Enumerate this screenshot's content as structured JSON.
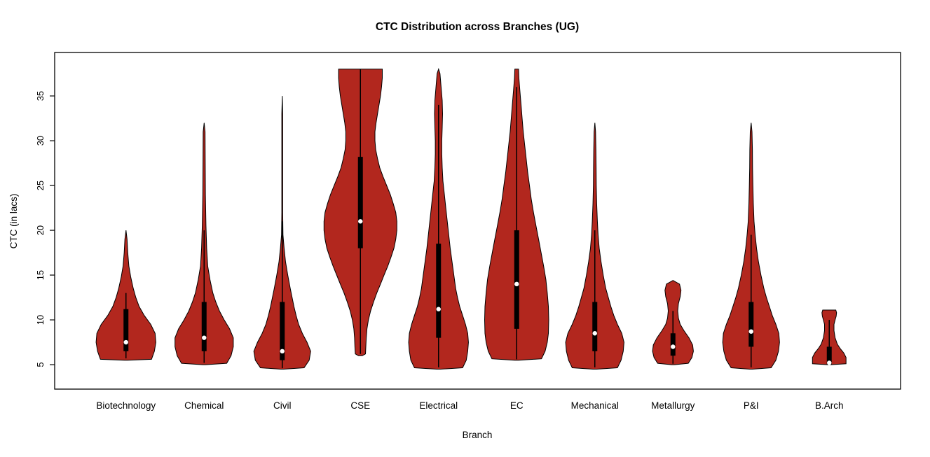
{
  "page": {
    "title": "CTC Distribution across Branches (UG)"
  },
  "chart_data": {
    "type": "violin",
    "title": "CTC Distribution across Branches (UG)",
    "xlabel": "Branch",
    "ylabel": "CTC (in lacs)",
    "ylim": [
      2.27,
      39.85
    ],
    "yticks": [
      5,
      10,
      15,
      20,
      25,
      30,
      35
    ],
    "grid": false,
    "fill_color": "#b2271e",
    "outline_color": "#000000",
    "box_color": "#000000",
    "median_dot_color": "#ffffff",
    "categories": [
      "Biotechnology",
      "Chemical",
      "Civil",
      "CSE",
      "Electrical",
      "EC",
      "Mechanical",
      "Metallurgy",
      "P&I",
      "B.Arch"
    ],
    "violins": [
      {
        "branch": "Biotechnology",
        "min": 5.5,
        "max": 20,
        "q1": 6.5,
        "median": 7.5,
        "q3": 11.2,
        "whisker_low": 5.7,
        "whisker_high": 13,
        "profile": [
          [
            5.5,
            0.04
          ],
          [
            5.6,
            0.7
          ],
          [
            6.5,
            0.78
          ],
          [
            7.5,
            0.82
          ],
          [
            8.5,
            0.8
          ],
          [
            9.5,
            0.68
          ],
          [
            10.5,
            0.5
          ],
          [
            11.5,
            0.36
          ],
          [
            12.5,
            0.27
          ],
          [
            13.5,
            0.2
          ],
          [
            14.8,
            0.13
          ],
          [
            16,
            0.08
          ],
          [
            17.5,
            0.05
          ],
          [
            19,
            0.03
          ],
          [
            20,
            0.0
          ]
        ]
      },
      {
        "branch": "Chemical",
        "min": 5.0,
        "max": 32,
        "q1": 6.5,
        "median": 8.0,
        "q3": 12.0,
        "whisker_low": 5.2,
        "whisker_high": 20,
        "profile": [
          [
            5,
            0.04
          ],
          [
            5.15,
            0.62
          ],
          [
            6,
            0.74
          ],
          [
            7,
            0.8
          ],
          [
            8,
            0.8
          ],
          [
            9,
            0.7
          ],
          [
            10,
            0.55
          ],
          [
            11,
            0.42
          ],
          [
            12,
            0.32
          ],
          [
            13,
            0.24
          ],
          [
            14.5,
            0.16
          ],
          [
            16,
            0.1
          ],
          [
            18,
            0.07
          ],
          [
            20.5,
            0.05
          ],
          [
            24,
            0.035
          ],
          [
            28,
            0.03
          ],
          [
            31,
            0.025
          ],
          [
            32,
            0.0
          ]
        ]
      },
      {
        "branch": "Civil",
        "min": 4.5,
        "max": 35,
        "q1": 5.5,
        "median": 6.5,
        "q3": 12.0,
        "whisker_low": 4.6,
        "whisker_high": 21,
        "profile": [
          [
            4.5,
            0.04
          ],
          [
            4.65,
            0.6
          ],
          [
            5.5,
            0.74
          ],
          [
            6.5,
            0.78
          ],
          [
            7.5,
            0.68
          ],
          [
            8.5,
            0.55
          ],
          [
            9.5,
            0.45
          ],
          [
            10.5,
            0.38
          ],
          [
            11.5,
            0.32
          ],
          [
            12.5,
            0.27
          ],
          [
            13.5,
            0.22
          ],
          [
            15,
            0.15
          ],
          [
            16.5,
            0.09
          ],
          [
            18,
            0.05
          ],
          [
            19.5,
            0.02
          ],
          [
            22,
            0.013
          ],
          [
            26,
            0.013
          ],
          [
            30,
            0.013
          ],
          [
            33,
            0.013
          ],
          [
            35,
            0.0
          ]
        ]
      },
      {
        "branch": "CSE",
        "min": 6.0,
        "max": 38,
        "q1": 18.0,
        "median": 21.0,
        "q3": 28.2,
        "whisker_low": 6.2,
        "whisker_high": 38,
        "profile": [
          [
            6,
            0.05
          ],
          [
            6.2,
            0.14
          ],
          [
            7,
            0.15
          ],
          [
            8,
            0.16
          ],
          [
            9,
            0.18
          ],
          [
            10,
            0.22
          ],
          [
            11,
            0.28
          ],
          [
            12,
            0.36
          ],
          [
            13,
            0.45
          ],
          [
            14,
            0.55
          ],
          [
            15,
            0.65
          ],
          [
            16,
            0.75
          ],
          [
            17,
            0.84
          ],
          [
            18,
            0.92
          ],
          [
            19,
            0.97
          ],
          [
            20,
            1.0
          ],
          [
            21,
            1.0
          ],
          [
            22,
            0.97
          ],
          [
            23,
            0.9
          ],
          [
            24,
            0.82
          ],
          [
            25,
            0.72
          ],
          [
            26,
            0.62
          ],
          [
            27,
            0.53
          ],
          [
            28,
            0.47
          ],
          [
            29,
            0.42
          ],
          [
            30,
            0.4
          ],
          [
            31,
            0.4
          ],
          [
            32,
            0.43
          ],
          [
            33,
            0.47
          ],
          [
            34,
            0.51
          ],
          [
            35,
            0.55
          ],
          [
            36,
            0.58
          ],
          [
            37,
            0.6
          ],
          [
            38,
            0.6
          ]
        ]
      },
      {
        "branch": "Electrical",
        "min": 4.5,
        "max": 38,
        "q1": 8.0,
        "median": 11.2,
        "q3": 18.5,
        "whisker_low": 4.7,
        "whisker_high": 34,
        "profile": [
          [
            4.5,
            0.05
          ],
          [
            4.65,
            0.66
          ],
          [
            5.5,
            0.76
          ],
          [
            6.5,
            0.8
          ],
          [
            7.5,
            0.82
          ],
          [
            8.5,
            0.8
          ],
          [
            9.5,
            0.74
          ],
          [
            10.5,
            0.66
          ],
          [
            11.5,
            0.58
          ],
          [
            12.5,
            0.52
          ],
          [
            13.5,
            0.47
          ],
          [
            15,
            0.42
          ],
          [
            16.5,
            0.37
          ],
          [
            18,
            0.32
          ],
          [
            19.5,
            0.28
          ],
          [
            21,
            0.24
          ],
          [
            22.5,
            0.2
          ],
          [
            24,
            0.16
          ],
          [
            25.5,
            0.12
          ],
          [
            27,
            0.1
          ],
          [
            28.5,
            0.09
          ],
          [
            30,
            0.09
          ],
          [
            31.5,
            0.1
          ],
          [
            33,
            0.11
          ],
          [
            34.5,
            0.1
          ],
          [
            36,
            0.07
          ],
          [
            37.5,
            0.04
          ],
          [
            38,
            0.0
          ]
        ]
      },
      {
        "branch": "EC",
        "min": 5.5,
        "max": 38,
        "q1": 9.0,
        "median": 14.0,
        "q3": 20.0,
        "whisker_low": 5.6,
        "whisker_high": 36,
        "profile": [
          [
            5.5,
            0.05
          ],
          [
            5.65,
            0.68
          ],
          [
            6.5,
            0.78
          ],
          [
            7.5,
            0.84
          ],
          [
            8.5,
            0.87
          ],
          [
            10,
            0.88
          ],
          [
            11.5,
            0.87
          ],
          [
            13,
            0.84
          ],
          [
            14.5,
            0.8
          ],
          [
            16,
            0.74
          ],
          [
            17.5,
            0.67
          ],
          [
            19,
            0.6
          ],
          [
            20.5,
            0.53
          ],
          [
            22,
            0.46
          ],
          [
            23.5,
            0.4
          ],
          [
            25,
            0.35
          ],
          [
            26.5,
            0.3
          ],
          [
            28,
            0.26
          ],
          [
            29.5,
            0.22
          ],
          [
            31,
            0.18
          ],
          [
            32.5,
            0.15
          ],
          [
            34,
            0.12
          ],
          [
            35.5,
            0.09
          ],
          [
            37,
            0.06
          ],
          [
            38,
            0.05
          ]
        ]
      },
      {
        "branch": "Mechanical",
        "min": 4.5,
        "max": 32,
        "q1": 6.5,
        "median": 8.5,
        "q3": 12.0,
        "whisker_low": 4.7,
        "whisker_high": 20,
        "profile": [
          [
            4.5,
            0.05
          ],
          [
            4.65,
            0.62
          ],
          [
            5.5,
            0.72
          ],
          [
            6.5,
            0.78
          ],
          [
            7.5,
            0.8
          ],
          [
            8.5,
            0.74
          ],
          [
            9.5,
            0.62
          ],
          [
            10.5,
            0.52
          ],
          [
            11.5,
            0.44
          ],
          [
            12.5,
            0.37
          ],
          [
            13.5,
            0.3
          ],
          [
            15,
            0.23
          ],
          [
            16.5,
            0.17
          ],
          [
            18,
            0.12
          ],
          [
            19.5,
            0.09
          ],
          [
            21,
            0.07
          ],
          [
            23,
            0.05
          ],
          [
            25,
            0.04
          ],
          [
            27,
            0.035
          ],
          [
            29,
            0.03
          ],
          [
            31,
            0.02
          ],
          [
            32,
            0.0
          ]
        ]
      },
      {
        "branch": "Metallurgy",
        "min": 5.0,
        "max": 14.4,
        "q1": 6.0,
        "median": 7.0,
        "q3": 8.5,
        "whisker_low": 5.1,
        "whisker_high": 11,
        "profile": [
          [
            5,
            0.04
          ],
          [
            5.15,
            0.42
          ],
          [
            5.8,
            0.52
          ],
          [
            6.5,
            0.56
          ],
          [
            7.2,
            0.54
          ],
          [
            8,
            0.44
          ],
          [
            8.8,
            0.3
          ],
          [
            9.5,
            0.2
          ],
          [
            10.2,
            0.15
          ],
          [
            11,
            0.13
          ],
          [
            11.8,
            0.15
          ],
          [
            12.6,
            0.2
          ],
          [
            13.3,
            0.22
          ],
          [
            14,
            0.18
          ],
          [
            14.4,
            0.0
          ]
        ]
      },
      {
        "branch": "P&I",
        "min": 4.5,
        "max": 32,
        "q1": 7.0,
        "median": 8.7,
        "q3": 12.0,
        "whisker_low": 4.7,
        "whisker_high": 19.5,
        "profile": [
          [
            4.5,
            0.04
          ],
          [
            4.65,
            0.55
          ],
          [
            5.5,
            0.68
          ],
          [
            6.5,
            0.75
          ],
          [
            7.5,
            0.78
          ],
          [
            8.5,
            0.76
          ],
          [
            9.5,
            0.68
          ],
          [
            10.5,
            0.58
          ],
          [
            11.5,
            0.5
          ],
          [
            12.5,
            0.42
          ],
          [
            13.5,
            0.35
          ],
          [
            15,
            0.27
          ],
          [
            16.5,
            0.2
          ],
          [
            18,
            0.15
          ],
          [
            19.5,
            0.11
          ],
          [
            21,
            0.08
          ],
          [
            23,
            0.06
          ],
          [
            25,
            0.05
          ],
          [
            27,
            0.04
          ],
          [
            29,
            0.035
          ],
          [
            31,
            0.025
          ],
          [
            32,
            0.0
          ]
        ]
      },
      {
        "branch": "B.Arch",
        "min": 5.0,
        "max": 11.1,
        "q1": 5.0,
        "median": 5.2,
        "q3": 7.0,
        "whisker_low": 5.0,
        "whisker_high": 10,
        "profile": [
          [
            5,
            0.04
          ],
          [
            5.1,
            0.46
          ],
          [
            5.8,
            0.46
          ],
          [
            6.3,
            0.4
          ],
          [
            6.8,
            0.3
          ],
          [
            7.3,
            0.22
          ],
          [
            8,
            0.16
          ],
          [
            8.8,
            0.13
          ],
          [
            9.5,
            0.13
          ],
          [
            10,
            0.16
          ],
          [
            10.4,
            0.19
          ],
          [
            10.8,
            0.2
          ],
          [
            11.1,
            0.18
          ]
        ]
      }
    ]
  }
}
